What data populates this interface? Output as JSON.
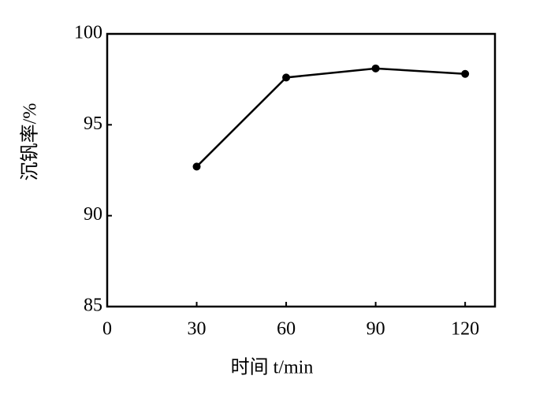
{
  "chart_data": {
    "type": "line",
    "x_label": "时间 t/min",
    "y_label": "沉钒率/%",
    "x": [
      30,
      60,
      90,
      120
    ],
    "series": [
      {
        "name": "沉钒率",
        "color": "#000000",
        "values": [
          92.7,
          97.6,
          98.1,
          97.8
        ]
      }
    ],
    "xlim": [
      0,
      130
    ],
    "xticks": [
      0,
      30,
      60,
      90,
      120
    ],
    "ylim": [
      85,
      100
    ],
    "yticks": [
      85,
      90,
      95,
      100
    ],
    "grid": false
  }
}
